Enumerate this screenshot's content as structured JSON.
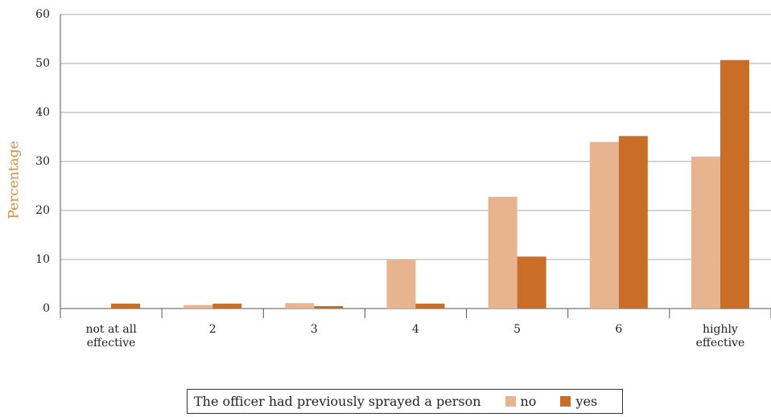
{
  "chart_data": {
    "type": "bar",
    "y_label": "Percentage",
    "categories": [
      "not at all effective",
      "2",
      "3",
      "4",
      "5",
      "6",
      "highly effective"
    ],
    "series": [
      {
        "name": "no",
        "color": "#e8b48f",
        "values": [
          0,
          0.7,
          1.1,
          10,
          22.8,
          34,
          31
        ]
      },
      {
        "name": "yes",
        "color": "#c96d27",
        "values": [
          1,
          1,
          0.5,
          1,
          10.6,
          35.2,
          50.7
        ]
      }
    ],
    "legend_title": "The officer had previously sprayed a person",
    "ylim": [
      0,
      60
    ],
    "yticks": [
      0,
      10,
      20,
      30,
      40,
      50,
      60
    ],
    "grid": true
  }
}
